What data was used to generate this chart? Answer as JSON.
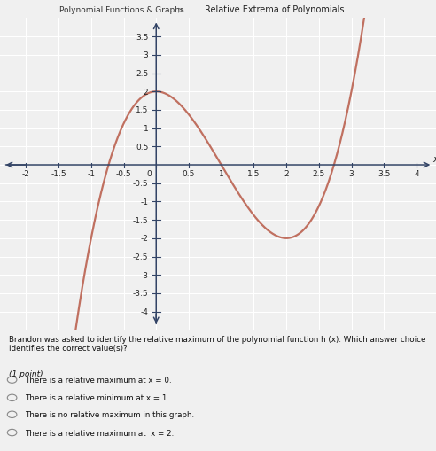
{
  "title_left": "Polynomial Functions & Graphs",
  "title_right": "Relative Extrema of Polynomials",
  "xlim": [
    -2.4,
    4.3
  ],
  "ylim": [
    -4.5,
    4.0
  ],
  "xlabel": "x",
  "curve_color": "#c07060",
  "curve_linewidth": 1.6,
  "bg_color": "#f0f0f0",
  "graph_bg": "#e8e8e8",
  "grid_color": "#ffffff",
  "title_bg": "#b8c8d8",
  "question_text": "Brandon was asked to identify the relative maximum of the polynomial function h (x). Which answer choice identifies the correct value(s)?",
  "point_label": "(1 point)",
  "choices": [
    "There is a relative maximum at x = 0.",
    "There is a relative minimum at x = 1.",
    "There is no relative maximum in this graph.",
    "There is a relative maximum at  x = 2."
  ],
  "xtick_vals": [
    -2,
    -1.5,
    -1,
    -0.5,
    0,
    0.5,
    1,
    1.5,
    2,
    2.5,
    3,
    3.5,
    4
  ],
  "ytick_vals": [
    -4,
    -3.5,
    -3,
    -2.5,
    -2,
    -1.5,
    -1,
    -0.5,
    0.5,
    1,
    1.5,
    2,
    2.5,
    3,
    3.5
  ],
  "axis_fontsize": 6.5,
  "figsize": [
    4.92,
    5.1
  ],
  "dpi": 100
}
